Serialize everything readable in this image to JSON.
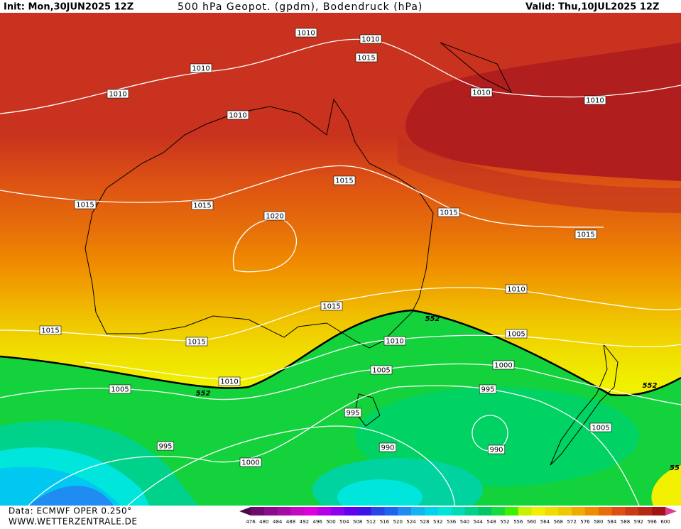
{
  "header": {
    "init": "Init: Mon,30JUN2025 12Z",
    "title": "500 hPa Geopot. (gpdm), Bodendruck (hPa)",
    "valid": "Valid: Thu,10JUL2025 12Z"
  },
  "footer": {
    "data": "Data: ECMWF OPER 0.250°",
    "site": "WWW.WETTERZENTRALE.DE"
  },
  "isobar_labels": [
    "1010",
    "1010",
    "1015",
    "1010",
    "1010",
    "1010",
    "1010",
    "1010",
    "1015",
    "1015",
    "1015",
    "1015",
    "1020",
    "1015",
    "1010",
    "1015",
    "1015",
    "1005",
    "1015",
    "1010",
    "1005",
    "1000",
    "1010",
    "1005",
    "995",
    "995",
    "1005",
    "995",
    "990",
    "990",
    "1000"
  ],
  "geopotential_labels": [
    "552",
    "552",
    "552",
    "55"
  ],
  "colorbar": {
    "labels": [
      476,
      480,
      484,
      488,
      492,
      496,
      500,
      504,
      508,
      512,
      516,
      520,
      524,
      528,
      532,
      536,
      540,
      544,
      548,
      552,
      556,
      560,
      564,
      568,
      572,
      576,
      580,
      584,
      588,
      592,
      596,
      600
    ],
    "colors": [
      "#4b0a4b",
      "#6e0a6e",
      "#8c0a8c",
      "#a50aa5",
      "#c40ac4",
      "#dc00dc",
      "#b400e6",
      "#8c00f0",
      "#6400f0",
      "#3c14e6",
      "#2846e6",
      "#1e64f0",
      "#1e8cf0",
      "#14b4f0",
      "#00d2f0",
      "#00e6dc",
      "#00dcb4",
      "#00d28c",
      "#00c864",
      "#14dc3c",
      "#3cf000",
      "#c8f000",
      "#f0f000",
      "#f0dc00",
      "#f0c800",
      "#f0aa00",
      "#f08c00",
      "#e66e0a",
      "#dc5014",
      "#c83c14",
      "#b42814",
      "#a01414",
      "#dc3c8c"
    ]
  }
}
